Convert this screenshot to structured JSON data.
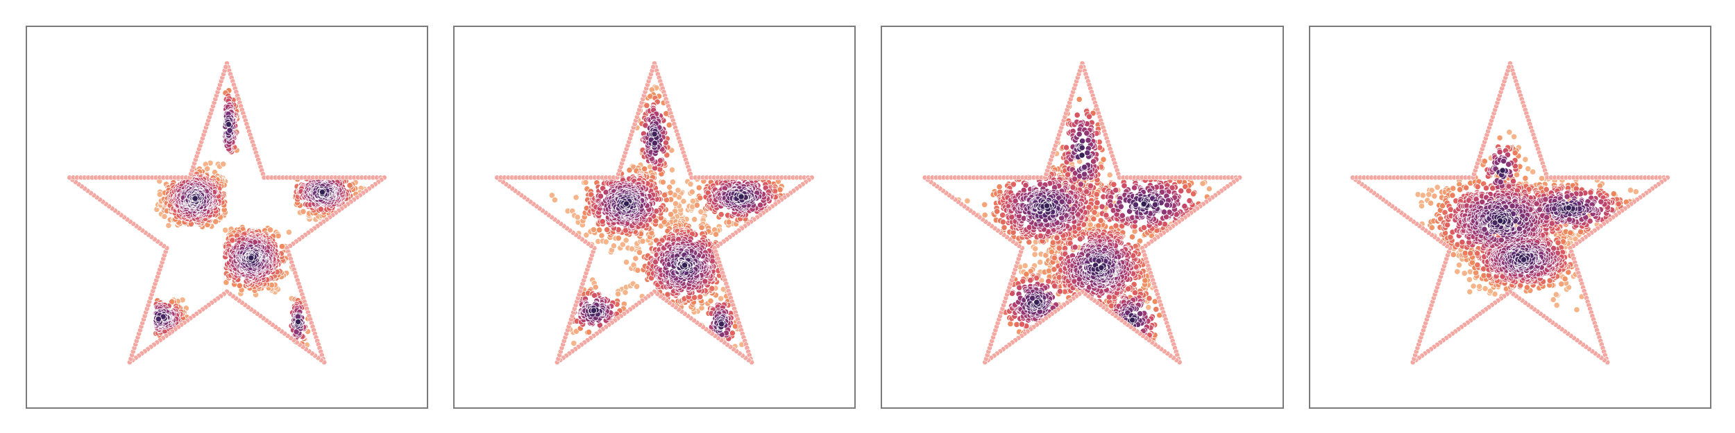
{
  "chart_data": [
    {
      "type": "scatter",
      "panel": 1,
      "description_of_content": "",
      "boundary": {
        "shape": "star",
        "color": "#f4a6a0",
        "vertices": [
          [
            0.0,
            1.0
          ],
          [
            0.2245,
            0.309
          ],
          [
            0.9511,
            0.309
          ],
          [
            0.3633,
            -0.118
          ],
          [
            0.5878,
            -0.809
          ],
          [
            0.0,
            -0.382
          ],
          [
            -0.5878,
            -0.809
          ],
          [
            -0.3633,
            -0.118
          ],
          [
            -0.9511,
            0.309
          ],
          [
            -0.2245,
            0.309
          ]
        ]
      },
      "colormap": [
        "#2d1e4f",
        "#5a2a6e",
        "#8a3576",
        "#b8406e",
        "#df5b5f",
        "#f08a5d",
        "#f6b48a"
      ],
      "clusters": [
        {
          "cx": -0.19,
          "cy": 0.18,
          "sx": 0.1,
          "sy": 0.09,
          "count": 520,
          "tight": true
        },
        {
          "cx": 0.15,
          "cy": -0.18,
          "sx": 0.11,
          "sy": 0.1,
          "count": 520,
          "tight": true
        },
        {
          "cx": 0.58,
          "cy": 0.22,
          "sx": 0.1,
          "sy": 0.07,
          "count": 320,
          "tight": true
        },
        {
          "cx": -0.4,
          "cy": -0.54,
          "sx": 0.08,
          "sy": 0.06,
          "count": 140,
          "tight": true
        },
        {
          "cx": 0.01,
          "cy": 0.62,
          "sx": 0.03,
          "sy": 0.12,
          "count": 110,
          "tight": true
        },
        {
          "cx": 0.43,
          "cy": -0.57,
          "sx": 0.03,
          "sy": 0.08,
          "count": 70,
          "tight": true
        }
      ],
      "squares": [
        {
          "x0": -0.43,
          "x1": -0.01,
          "y0": 0.01,
          "y1": 0.4
        },
        {
          "x0": -0.01,
          "x1": 0.41,
          "y0": -0.4,
          "y1": 0.01
        },
        {
          "x0": 0.41,
          "x1": 0.83,
          "y0": 0.01,
          "y1": 0.32
        },
        {
          "x0": -0.43,
          "x1": -0.15,
          "y0": -0.68,
          "y1": -0.42
        },
        {
          "x0": -0.01,
          "x1": 0.07,
          "y0": 0.4,
          "y1": 0.85
        },
        {
          "x0": 0.39,
          "x1": 0.5,
          "y0": -0.82,
          "y1": -0.4
        }
      ]
    },
    {
      "type": "scatter",
      "panel": 2,
      "boundary": {
        "shape": "star",
        "color": "#f4a6a0"
      },
      "clusters": [
        {
          "cx": -0.17,
          "cy": 0.15,
          "sx": 0.14,
          "sy": 0.11,
          "count": 520
        },
        {
          "cx": 0.18,
          "cy": -0.22,
          "sx": 0.14,
          "sy": 0.13,
          "count": 560
        },
        {
          "cx": 0.52,
          "cy": 0.19,
          "sx": 0.14,
          "sy": 0.08,
          "count": 300
        },
        {
          "cx": -0.36,
          "cy": -0.5,
          "sx": 0.09,
          "sy": 0.07,
          "count": 140
        },
        {
          "cx": 0.0,
          "cy": 0.55,
          "sx": 0.05,
          "sy": 0.14,
          "count": 140
        },
        {
          "cx": 0.4,
          "cy": -0.58,
          "sx": 0.05,
          "sy": 0.09,
          "count": 90
        }
      ]
    },
    {
      "type": "scatter",
      "panel": 3,
      "boundary": {
        "shape": "star",
        "color": "#f4a6a0"
      },
      "clusters": [
        {
          "cx": -0.22,
          "cy": 0.13,
          "sx": 0.18,
          "sy": 0.13,
          "count": 520
        },
        {
          "cx": 0.1,
          "cy": -0.23,
          "sx": 0.16,
          "sy": 0.14,
          "count": 620
        },
        {
          "cx": 0.38,
          "cy": 0.15,
          "sx": 0.2,
          "sy": 0.1,
          "count": 300
        },
        {
          "cx": -0.28,
          "cy": -0.45,
          "sx": 0.12,
          "sy": 0.1,
          "count": 180
        },
        {
          "cx": 0.0,
          "cy": 0.45,
          "sx": 0.07,
          "sy": 0.18,
          "count": 160
        },
        {
          "cx": 0.3,
          "cy": -0.55,
          "sx": 0.09,
          "sy": 0.11,
          "count": 120
        }
      ]
    },
    {
      "type": "scatter",
      "panel": 4,
      "boundary": {
        "shape": "star",
        "color": "#f4a6a0"
      },
      "clusters": [
        {
          "cx": -0.05,
          "cy": 0.05,
          "sx": 0.22,
          "sy": 0.14,
          "count": 800
        },
        {
          "cx": 0.08,
          "cy": -0.18,
          "sx": 0.17,
          "sy": 0.1,
          "count": 600
        },
        {
          "cx": 0.35,
          "cy": 0.12,
          "sx": 0.2,
          "sy": 0.08,
          "count": 300
        },
        {
          "cx": -0.05,
          "cy": 0.35,
          "sx": 0.06,
          "sy": 0.1,
          "count": 80
        }
      ]
    }
  ]
}
